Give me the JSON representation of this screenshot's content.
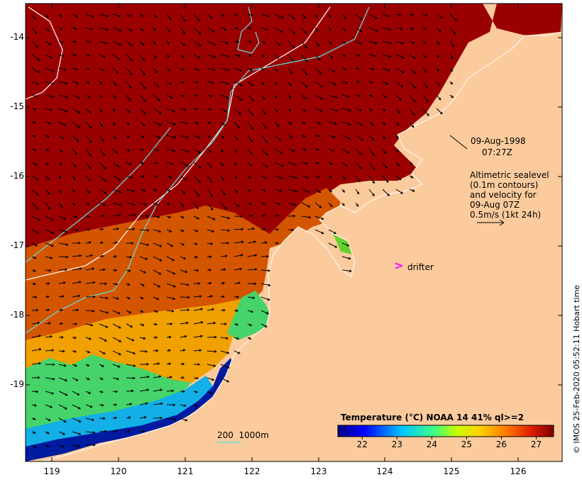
{
  "map": {
    "y_labels": [
      "-14",
      "-15",
      "-16",
      "-17",
      "-18",
      "-19"
    ],
    "x_labels": [
      "119",
      "120",
      "121",
      "122",
      "123",
      "124",
      "125",
      "126"
    ],
    "date_line1": "09-Aug-1998",
    "date_line2": "07:27Z",
    "info_lines": [
      "Altimetric sealevel",
      "(0.1m contours)",
      "and velocity for",
      "09-Aug 07Z",
      "0.5m/s (1kt 24h)"
    ],
    "drifter_symbol": ">",
    "drifter_label": "drifter",
    "depth_legend": "200  1000m",
    "credit": "© IMOS 25-Feb-2020 05:52:11 Hobart time",
    "colorbar": {
      "title": "Temperature (°C) NOAA 14 41% ql>=2",
      "ticks": [
        "22",
        "23",
        "24",
        "25",
        "26",
        "27"
      ],
      "range": [
        21.3,
        27.5
      ]
    },
    "colors": {
      "land": "#fccb9d",
      "warm_sea": "#9b0000",
      "contour_200m": "#66e0e0",
      "contour_1000m": "#ffffff",
      "drifter": "#ff00ff"
    }
  }
}
